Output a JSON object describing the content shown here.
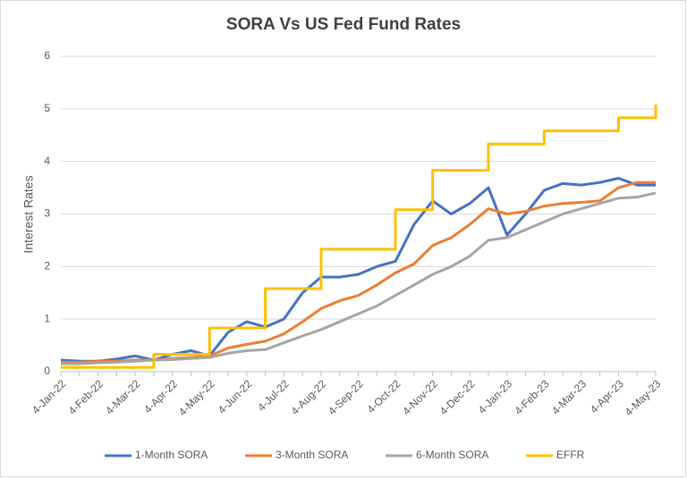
{
  "chart_data": {
    "type": "line",
    "title": "SORA Vs US Fed Fund Rates",
    "y_label": "Interest Rates",
    "x": [
      "4-Jan-22",
      null,
      "4-Feb-22",
      null,
      "4-Mar-22",
      null,
      "4-Apr-22",
      null,
      "4-May-22",
      null,
      "4-Jun-22",
      null,
      "4-Jul-22",
      null,
      "4-Aug-22",
      null,
      "4-Sep-22",
      null,
      "4-Oct-22",
      null,
      "4-Nov-22",
      null,
      "4-Dec-22",
      null,
      "4-Jan-23",
      null,
      "4-Feb-23",
      null,
      "4-Mar-23",
      null,
      "4-Apr-23",
      null,
      "4-May-23"
    ],
    "ylim": [
      0,
      6
    ],
    "yticks": [
      0,
      1,
      2,
      3,
      4,
      5,
      6
    ],
    "grid": true,
    "legend": "bottom",
    "series": [
      {
        "name": "1-Month SORA",
        "color": "#4472c4",
        "values": [
          0.22,
          0.2,
          0.2,
          0.24,
          0.3,
          0.22,
          0.33,
          0.4,
          0.3,
          0.75,
          0.95,
          0.85,
          1.0,
          1.5,
          1.8,
          1.8,
          1.85,
          2.0,
          2.1,
          2.8,
          3.25,
          3.0,
          3.2,
          3.5,
          2.6,
          3.0,
          3.45,
          3.58,
          3.55,
          3.6,
          3.68,
          3.55,
          3.55
        ]
      },
      {
        "name": "3-Month SORA",
        "color": "#ed7d31",
        "values": [
          0.18,
          0.18,
          0.2,
          0.2,
          0.22,
          0.22,
          0.25,
          0.27,
          0.3,
          0.45,
          0.52,
          0.58,
          0.72,
          0.95,
          1.2,
          1.35,
          1.45,
          1.65,
          1.88,
          2.05,
          2.4,
          2.55,
          2.8,
          3.1,
          3.0,
          3.05,
          3.15,
          3.2,
          3.22,
          3.25,
          3.5,
          3.6,
          3.6
        ]
      },
      {
        "name": "6-Month SORA",
        "color": "#a5a5a5",
        "values": [
          0.15,
          0.15,
          0.17,
          0.18,
          0.2,
          0.22,
          0.23,
          0.25,
          0.27,
          0.35,
          0.4,
          0.42,
          0.55,
          0.68,
          0.8,
          0.95,
          1.1,
          1.25,
          1.45,
          1.65,
          1.85,
          2.0,
          2.2,
          2.5,
          2.55,
          2.7,
          2.85,
          3.0,
          3.1,
          3.2,
          3.3,
          3.32,
          3.4
        ]
      },
      {
        "name": "EFFR",
        "color": "#ffc000",
        "step": "after",
        "values": [
          0.08,
          0.08,
          0.08,
          0.08,
          0.08,
          0.33,
          0.33,
          0.33,
          0.83,
          0.83,
          0.83,
          1.58,
          1.58,
          1.58,
          2.33,
          2.33,
          2.33,
          2.33,
          3.08,
          3.08,
          3.83,
          3.83,
          3.83,
          4.33,
          4.33,
          4.33,
          4.58,
          4.58,
          4.58,
          4.58,
          4.83,
          4.83,
          5.08
        ]
      }
    ]
  }
}
